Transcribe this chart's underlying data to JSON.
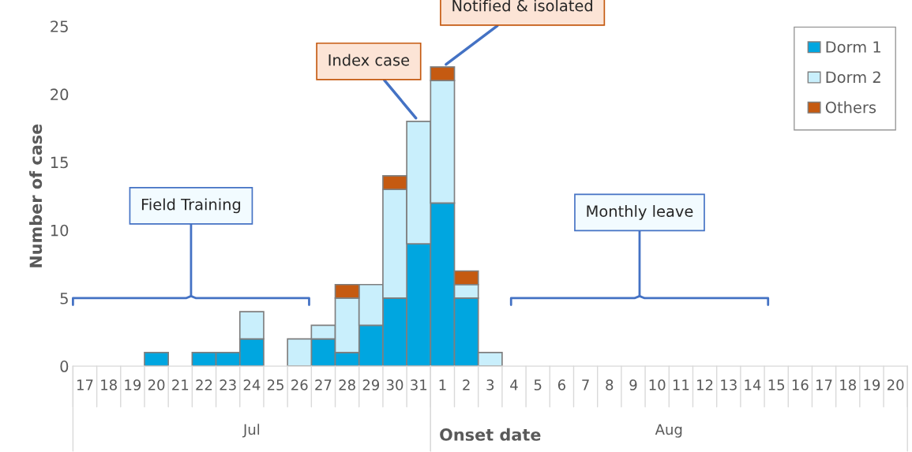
{
  "chart_data": {
    "type": "bar",
    "stacked": true,
    "xlabel": "Onset date",
    "ylabel": "Number of case",
    "categories": [
      "17",
      "18",
      "19",
      "20",
      "21",
      "22",
      "23",
      "24",
      "25",
      "26",
      "27",
      "28",
      "29",
      "30",
      "31",
      "1",
      "2",
      "3",
      "4",
      "5",
      "6",
      "7",
      "8",
      "9",
      "10",
      "11",
      "12",
      "13",
      "14",
      "15",
      "16",
      "17",
      "18",
      "19",
      "20"
    ],
    "series": [
      {
        "name": "Dorm 1",
        "color": "#00a6e0",
        "values": [
          null,
          null,
          null,
          1,
          null,
          1,
          1,
          2,
          null,
          null,
          2,
          1,
          3,
          5,
          9,
          12,
          5,
          null,
          null,
          null,
          null,
          null,
          null,
          null,
          null,
          null,
          null,
          null,
          null,
          null,
          null,
          null,
          null,
          null,
          null
        ]
      },
      {
        "name": "Dorm 2",
        "color": "#c9effc",
        "values": [
          null,
          null,
          null,
          null,
          null,
          null,
          null,
          2,
          null,
          2,
          1,
          4,
          3,
          8,
          9,
          9,
          1,
          1,
          null,
          null,
          null,
          null,
          null,
          null,
          null,
          null,
          null,
          null,
          null,
          null,
          null,
          null,
          null,
          null,
          null
        ]
      },
      {
        "name": "Others",
        "color": "#c55a11",
        "values": [
          null,
          null,
          null,
          null,
          null,
          null,
          null,
          null,
          null,
          null,
          null,
          1,
          null,
          1,
          null,
          1,
          1,
          null,
          null,
          null,
          null,
          null,
          null,
          null,
          null,
          null,
          null,
          null,
          null,
          null,
          null,
          null,
          null,
          null,
          null
        ]
      }
    ],
    "ylim": [
      0,
      25
    ],
    "yticks": [
      0,
      5,
      10,
      15,
      20,
      25
    ],
    "grid": false,
    "legend": "top right",
    "annotations": [
      "Jul",
      "Aug",
      {
        "text": "Index case",
        "x": "31",
        "y": 18
      },
      {
        "text": "Notified & isolated",
        "x": "1",
        "y": 22
      },
      "Field Training",
      "Monthly leave"
    ]
  }
}
